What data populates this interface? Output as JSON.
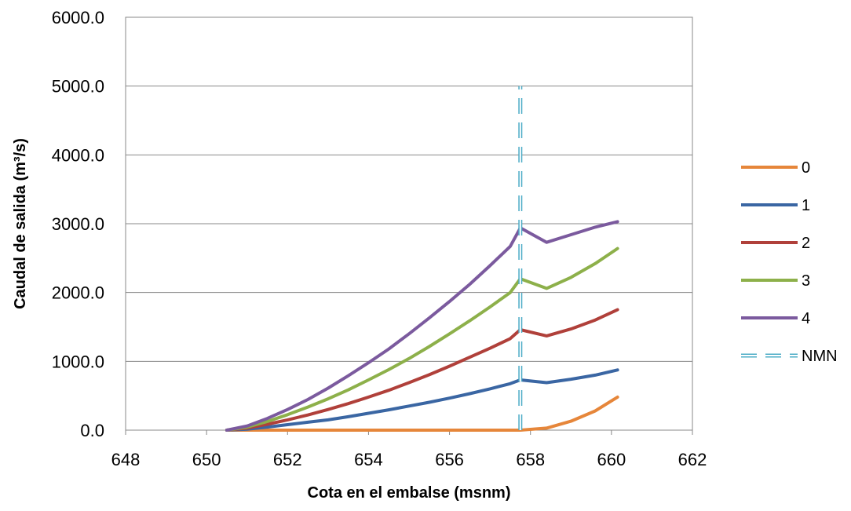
{
  "chart_data": {
    "type": "line",
    "xlabel": "Cota en el embalse (msnm)",
    "ylabel": "Caudal de salida (m³/s)",
    "xlim": [
      648,
      662
    ],
    "ylim": [
      0,
      6000
    ],
    "xticks": [
      648,
      650,
      652,
      654,
      656,
      658,
      660,
      662
    ],
    "yticks": [
      0,
      1000,
      2000,
      3000,
      4000,
      5000,
      6000
    ],
    "ytick_labels": [
      "0.0",
      "1000.0",
      "2000.0",
      "3000.0",
      "4000.0",
      "5000.0",
      "6000.0"
    ],
    "grid": "horizontal",
    "legend_position": "right",
    "series": [
      {
        "name": "0",
        "color": "#E6863A",
        "style": "solid",
        "points": [
          [
            650.5,
            0
          ],
          [
            651.0,
            0
          ],
          [
            652.0,
            0
          ],
          [
            653.0,
            0
          ],
          [
            654.0,
            0
          ],
          [
            655.0,
            0
          ],
          [
            656.0,
            0
          ],
          [
            657.0,
            0
          ],
          [
            657.75,
            0
          ],
          [
            658.4,
            30
          ],
          [
            659.0,
            130
          ],
          [
            659.6,
            280
          ],
          [
            660.15,
            480
          ]
        ]
      },
      {
        "name": "1",
        "color": "#3A66A3",
        "style": "solid",
        "points": [
          [
            650.5,
            0
          ],
          [
            651.0,
            15
          ],
          [
            651.5,
            45
          ],
          [
            652.0,
            80
          ],
          [
            652.5,
            115
          ],
          [
            653.0,
            150
          ],
          [
            653.5,
            195
          ],
          [
            654.0,
            245
          ],
          [
            654.5,
            295
          ],
          [
            655.0,
            350
          ],
          [
            655.5,
            405
          ],
          [
            656.0,
            465
          ],
          [
            656.5,
            530
          ],
          [
            657.0,
            600
          ],
          [
            657.5,
            675
          ],
          [
            657.75,
            730
          ],
          [
            658.4,
            690
          ],
          [
            659.0,
            740
          ],
          [
            659.6,
            800
          ],
          [
            660.15,
            875
          ]
        ]
      },
      {
        "name": "2",
        "color": "#B0403A",
        "style": "solid",
        "points": [
          [
            650.5,
            0
          ],
          [
            651.0,
            30
          ],
          [
            651.5,
            85
          ],
          [
            652.0,
            150
          ],
          [
            652.5,
            220
          ],
          [
            653.0,
            300
          ],
          [
            653.5,
            385
          ],
          [
            654.0,
            480
          ],
          [
            654.5,
            580
          ],
          [
            655.0,
            690
          ],
          [
            655.5,
            805
          ],
          [
            656.0,
            930
          ],
          [
            656.5,
            1060
          ],
          [
            657.0,
            1190
          ],
          [
            657.5,
            1330
          ],
          [
            657.75,
            1460
          ],
          [
            658.4,
            1370
          ],
          [
            659.0,
            1470
          ],
          [
            659.6,
            1600
          ],
          [
            660.15,
            1750
          ]
        ]
      },
      {
        "name": "3",
        "color": "#8DB04A",
        "style": "solid",
        "points": [
          [
            650.5,
            0
          ],
          [
            651.0,
            45
          ],
          [
            651.5,
            125
          ],
          [
            652.0,
            225
          ],
          [
            652.5,
            335
          ],
          [
            653.0,
            455
          ],
          [
            653.5,
            585
          ],
          [
            654.0,
            730
          ],
          [
            654.5,
            880
          ],
          [
            655.0,
            1040
          ],
          [
            655.5,
            1215
          ],
          [
            656.0,
            1400
          ],
          [
            656.5,
            1590
          ],
          [
            657.0,
            1790
          ],
          [
            657.5,
            2000
          ],
          [
            657.75,
            2200
          ],
          [
            658.4,
            2060
          ],
          [
            659.0,
            2220
          ],
          [
            659.6,
            2420
          ],
          [
            660.15,
            2640
          ]
        ]
      },
      {
        "name": "4",
        "color": "#7B5A9E",
        "style": "solid",
        "points": [
          [
            650.5,
            0
          ],
          [
            651.0,
            60
          ],
          [
            651.5,
            170
          ],
          [
            652.0,
            300
          ],
          [
            652.5,
            445
          ],
          [
            653.0,
            610
          ],
          [
            653.5,
            790
          ],
          [
            654.0,
            980
          ],
          [
            654.5,
            1180
          ],
          [
            655.0,
            1400
          ],
          [
            655.5,
            1630
          ],
          [
            656.0,
            1870
          ],
          [
            656.5,
            2120
          ],
          [
            657.0,
            2390
          ],
          [
            657.5,
            2670
          ],
          [
            657.75,
            2940
          ],
          [
            658.4,
            2730
          ],
          [
            659.0,
            2840
          ],
          [
            659.6,
            2950
          ],
          [
            660.15,
            3030
          ]
        ]
      },
      {
        "name": "NMN",
        "color": "#4BACC6",
        "style": "dashed",
        "points": [
          [
            657.75,
            0
          ],
          [
            657.75,
            5000
          ]
        ]
      }
    ]
  }
}
